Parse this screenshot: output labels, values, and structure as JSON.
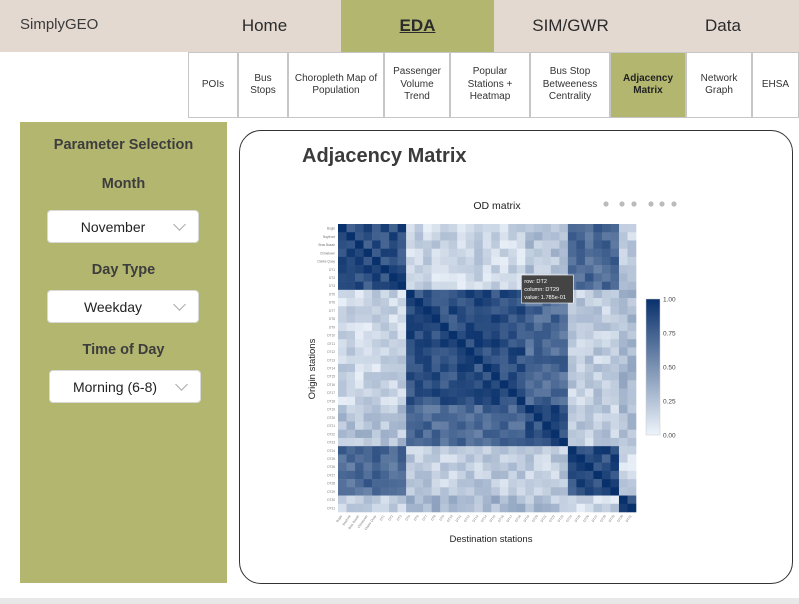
{
  "brand": "SimplyGEO",
  "nav": [
    "Home",
    "EDA",
    "SIM/GWR",
    "Data"
  ],
  "nav_active": 1,
  "subtabs": [
    {
      "label": "POIs"
    },
    {
      "label": "Bus Stops"
    },
    {
      "label": "Choropleth Map of Population"
    },
    {
      "label": "Passenger Volume Trend"
    },
    {
      "label": "Popular Stations + Heatmap"
    },
    {
      "label": "Bus Stop Betweeness Centrality"
    },
    {
      "label": "Adjacency Matrix"
    },
    {
      "label": "Network Graph"
    },
    {
      "label": "EHSA"
    }
  ],
  "subtab_active": 6,
  "sidebar": {
    "heading": "Parameter Selection",
    "month_label": "Month",
    "month_value": "November",
    "daytype_label": "Day Type",
    "daytype_value": "Weekday",
    "time_label": "Time of Day",
    "time_value": "Morning (6-8)"
  },
  "panel_title": "Adjacency Matrix",
  "colors": {
    "accent": "#b2b66e",
    "topbar": "#e3d9d0",
    "matrix_low": "#eef4fb",
    "matrix_high": "#08306b"
  },
  "icons": [
    "camera-icon",
    "zoom-icon",
    "pan-icon",
    "zoom-in-icon",
    "zoom-out-icon",
    "home-icon"
  ],
  "chart_data": {
    "type": "heatmap",
    "title": "OD matrix",
    "xlabel": "Destination stations",
    "ylabel": "Origin stations",
    "colorbar_ticks": [
      "1.00",
      "0.75",
      "0.50",
      "0.25",
      "0.00"
    ],
    "zlim": [
      0,
      1
    ],
    "tooltip": {
      "row": "row: DT2",
      "column": "column: DT29",
      "value": "value: 1.785e-01"
    },
    "stations": [
      "Bugis",
      "Bayfront",
      "Bras Basah",
      "Chinatown",
      "Clarke Quay",
      "DT1",
      "DT2",
      "DT3",
      "DT5",
      "DT6",
      "DT7",
      "DT8",
      "DT9",
      "DT10",
      "DT11",
      "DT12",
      "DT13",
      "DT14",
      "DT15",
      "DT16",
      "DT17",
      "DT18",
      "DT19",
      "DT20",
      "DT21",
      "DT22",
      "DT23",
      "DT24",
      "DT25",
      "DT26",
      "DT27",
      "DT28",
      "DT29",
      "DT30",
      "DT31"
    ],
    "groups": [
      0,
      0,
      0,
      0,
      0,
      0,
      0,
      0,
      1,
      1,
      1,
      1,
      1,
      1,
      1,
      1,
      1,
      1,
      1,
      1,
      1,
      1,
      2,
      2,
      2,
      2,
      2,
      3,
      3,
      3,
      3,
      3,
      3,
      4,
      4
    ],
    "base_levels": [
      [
        0.85,
        0.15,
        0.25,
        0.7,
        0.2
      ],
      [
        0.15,
        0.85,
        0.7,
        0.2,
        0.3
      ],
      [
        0.25,
        0.7,
        0.85,
        0.2,
        0.25
      ],
      [
        0.7,
        0.2,
        0.2,
        0.85,
        0.15
      ],
      [
        0.2,
        0.3,
        0.25,
        0.15,
        0.85
      ]
    ]
  }
}
